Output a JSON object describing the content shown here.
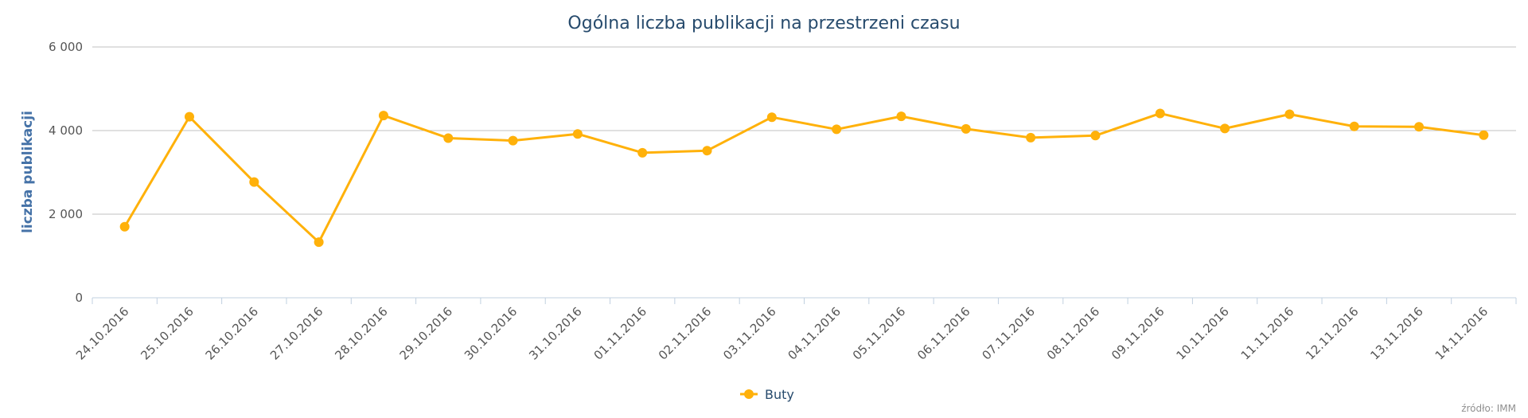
{
  "chart_data": {
    "type": "line",
    "title": "Ogólna liczba publikacji na przestrzeni czasu",
    "ylabel": "liczba publikacji",
    "xlabel": "",
    "ylim": [
      0,
      6000
    ],
    "yticks": [
      0,
      2000,
      4000,
      6000
    ],
    "ytick_labels": [
      "0",
      "2 000",
      "4 000",
      "6 000"
    ],
    "grid": true,
    "legend_position": "bottom-center",
    "categories": [
      "24.10.2016",
      "25.10.2016",
      "26.10.2016",
      "27.10.2016",
      "28.10.2016",
      "29.10.2016",
      "30.10.2016",
      "31.10.2016",
      "01.11.2016",
      "02.11.2016",
      "03.11.2016",
      "04.11.2016",
      "05.11.2016",
      "06.11.2016",
      "07.11.2016",
      "08.11.2016",
      "09.11.2016",
      "10.11.2016",
      "11.11.2016",
      "12.11.2016",
      "13.11.2016",
      "14.11.2016"
    ],
    "series": [
      {
        "name": "Buty",
        "color": "#ffb10a",
        "values": [
          1700,
          4330,
          2770,
          1330,
          4360,
          3820,
          3760,
          3920,
          3470,
          3520,
          4320,
          4030,
          4340,
          4040,
          3830,
          3880,
          4410,
          4050,
          4390,
          4100,
          4090,
          3890
        ]
      }
    ],
    "credits": "źródło: IMM"
  }
}
